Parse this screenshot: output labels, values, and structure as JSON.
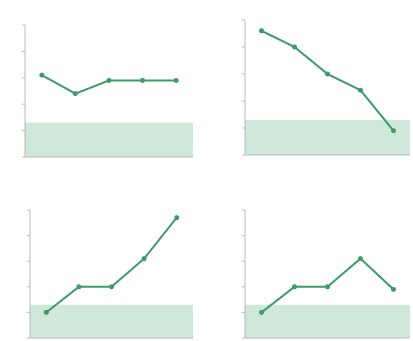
{
  "chart_data": [
    {
      "type": "line",
      "x": [
        1,
        2,
        3,
        4,
        5
      ],
      "values": [
        3.1,
        2.4,
        2.9,
        2.9,
        2.9
      ],
      "color": "#3f9a6c",
      "band": [
        0,
        1.3
      ],
      "band_color": "#cfe8da",
      "xlim": [
        0.5,
        5.5
      ],
      "ylim": [
        0,
        5
      ],
      "yticks": [
        0,
        1,
        2,
        3,
        4,
        5
      ]
    },
    {
      "type": "line",
      "x": [
        1,
        2,
        3,
        4,
        5
      ],
      "values": [
        4.6,
        4.0,
        3.0,
        2.4,
        0.9
      ],
      "color": "#3f9a6c",
      "band": [
        0,
        1.3
      ],
      "band_color": "#cfe8da",
      "xlim": [
        0.5,
        5.5
      ],
      "ylim": [
        0,
        5
      ],
      "yticks": [
        0,
        1,
        2,
        3,
        4,
        5
      ]
    },
    {
      "type": "line",
      "x": [
        1,
        2,
        3,
        4,
        5
      ],
      "values": [
        1.0,
        2.0,
        2.0,
        3.1,
        4.7
      ],
      "color": "#3f9a6c",
      "band": [
        0,
        1.3
      ],
      "band_color": "#cfe8da",
      "xlim": [
        0.5,
        5.5
      ],
      "ylim": [
        0,
        5
      ],
      "yticks": [
        0,
        1,
        2,
        3,
        4,
        5
      ]
    },
    {
      "type": "line",
      "x": [
        1,
        2,
        3,
        4,
        5
      ],
      "values": [
        1.0,
        2.0,
        2.0,
        3.1,
        1.9
      ],
      "color": "#3f9a6c",
      "band": [
        0,
        1.3
      ],
      "band_color": "#cfe8da",
      "xlim": [
        0.5,
        5.5
      ],
      "ylim": [
        0,
        5
      ],
      "yticks": [
        0,
        1,
        2,
        3,
        4,
        5
      ]
    }
  ]
}
